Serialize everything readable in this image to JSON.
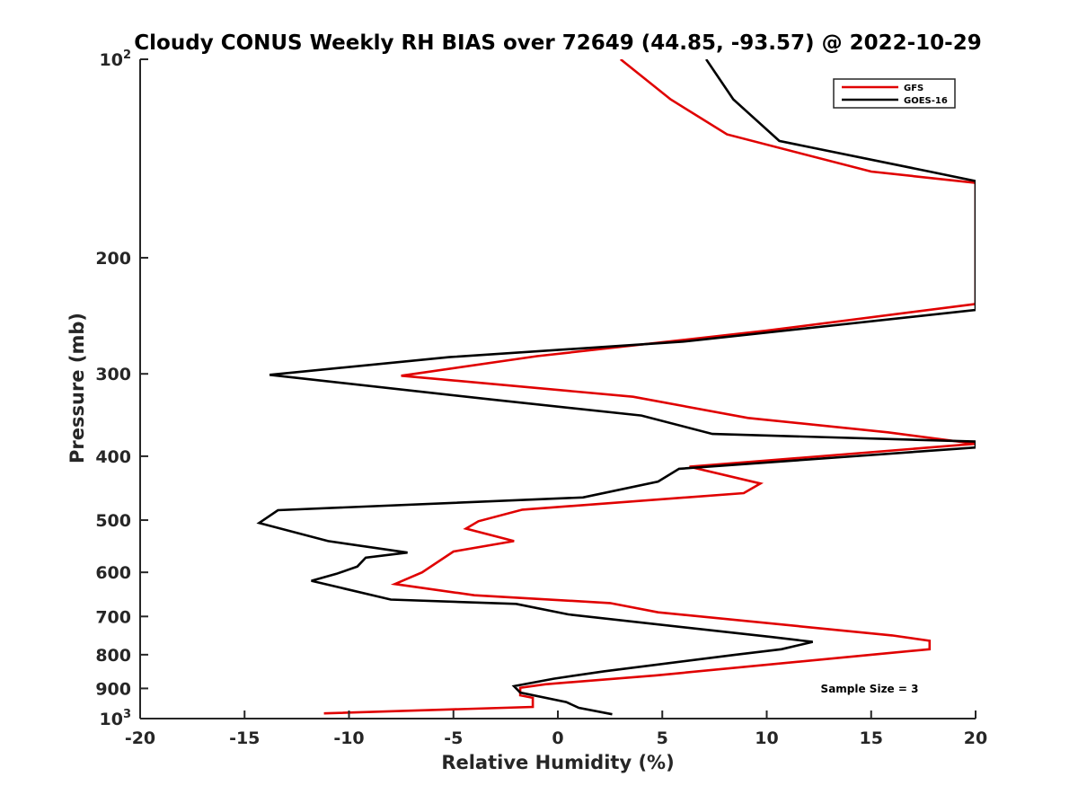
{
  "chart_data": {
    "type": "line",
    "title": "Cloudy CONUS Weekly RH BIAS over 72649 (44.85, -93.57) @ 2022-10-29",
    "xlabel": "Relative Humidity (%)",
    "ylabel": "Pressure (mb)",
    "xlim": [
      -20,
      20
    ],
    "ylim": [
      100,
      1000
    ],
    "y_scale": "log",
    "y_reversed": true,
    "grid": false,
    "legend_position": "top-right",
    "annotation": "Sample Size = 3",
    "x_ticks": [
      "-20",
      "-15",
      "-10",
      "-5",
      "0",
      "5",
      "10",
      "15",
      "20"
    ],
    "y_ticks": [
      {
        "value": 100,
        "label": "10",
        "sup": "2"
      },
      {
        "value": 200,
        "label": "200",
        "sup": ""
      },
      {
        "value": 300,
        "label": "300",
        "sup": ""
      },
      {
        "value": 400,
        "label": "400",
        "sup": ""
      },
      {
        "value": 500,
        "label": "500",
        "sup": ""
      },
      {
        "value": 600,
        "label": "600",
        "sup": ""
      },
      {
        "value": 700,
        "label": "700",
        "sup": ""
      },
      {
        "value": 800,
        "label": "800",
        "sup": ""
      },
      {
        "value": 900,
        "label": "900",
        "sup": ""
      },
      {
        "value": 1000,
        "label": "10",
        "sup": "3"
      }
    ],
    "series": [
      {
        "name": "GFS",
        "color": "#e00000",
        "points": [
          [
            3.0,
            100
          ],
          [
            5.4,
            115
          ],
          [
            8.1,
            130
          ],
          [
            15.0,
            148
          ],
          [
            20.0,
            154
          ],
          [
            20.0,
            154
          ],
          [
            20.0,
            235
          ],
          [
            10.0,
            258
          ],
          [
            -1.0,
            282
          ],
          [
            -7.5,
            302
          ],
          [
            3.6,
            325
          ],
          [
            9.1,
            350
          ],
          [
            15.8,
            368
          ],
          [
            20.0,
            383
          ],
          [
            6.3,
            415
          ],
          [
            9.7,
            440
          ],
          [
            8.9,
            455
          ],
          [
            -1.7,
            482
          ],
          [
            -3.8,
            502
          ],
          [
            -4.4,
            515
          ],
          [
            -2.1,
            538
          ],
          [
            -5.0,
            558
          ],
          [
            -6.5,
            600
          ],
          [
            -7.8,
            625
          ],
          [
            -4.0,
            650
          ],
          [
            2.5,
            668
          ],
          [
            4.8,
            690
          ],
          [
            16.0,
            748
          ],
          [
            17.8,
            762
          ],
          [
            17.8,
            785
          ],
          [
            15.0,
            800
          ],
          [
            4.7,
            860
          ],
          [
            -0.6,
            887
          ],
          [
            -1.8,
            898
          ],
          [
            -1.8,
            922
          ],
          [
            -1.2,
            930
          ],
          [
            -1.2,
            960
          ],
          [
            -11.2,
            982
          ]
        ]
      },
      {
        "name": "GOES-16",
        "color": "#000000",
        "points": [
          [
            7.1,
            100
          ],
          [
            8.4,
            115
          ],
          [
            10.6,
            133
          ],
          [
            17.8,
            148
          ],
          [
            20.0,
            153
          ],
          [
            20.0,
            240
          ],
          [
            6.0,
            268
          ],
          [
            -5.2,
            283
          ],
          [
            -13.8,
            301
          ],
          [
            -3.2,
            328
          ],
          [
            4.0,
            347
          ],
          [
            7.4,
            370
          ],
          [
            20.0,
            380
          ],
          [
            20.0,
            388
          ],
          [
            5.8,
            418
          ],
          [
            4.8,
            437
          ],
          [
            1.2,
            462
          ],
          [
            -13.4,
            483
          ],
          [
            -14.3,
            505
          ],
          [
            -11.0,
            538
          ],
          [
            -7.2,
            560
          ],
          [
            -9.2,
            570
          ],
          [
            -9.6,
            588
          ],
          [
            -10.6,
            603
          ],
          [
            -11.8,
            618
          ],
          [
            -8.0,
            660
          ],
          [
            -2.0,
            670
          ],
          [
            0.5,
            695
          ],
          [
            10.2,
            752
          ],
          [
            12.2,
            765
          ],
          [
            10.7,
            785
          ],
          [
            8.5,
            800
          ],
          [
            2.2,
            848
          ],
          [
            -0.2,
            870
          ],
          [
            -2.1,
            893
          ],
          [
            -1.8,
            913
          ],
          [
            0.4,
            944
          ],
          [
            1.0,
            963
          ],
          [
            2.6,
            985
          ]
        ]
      }
    ]
  }
}
